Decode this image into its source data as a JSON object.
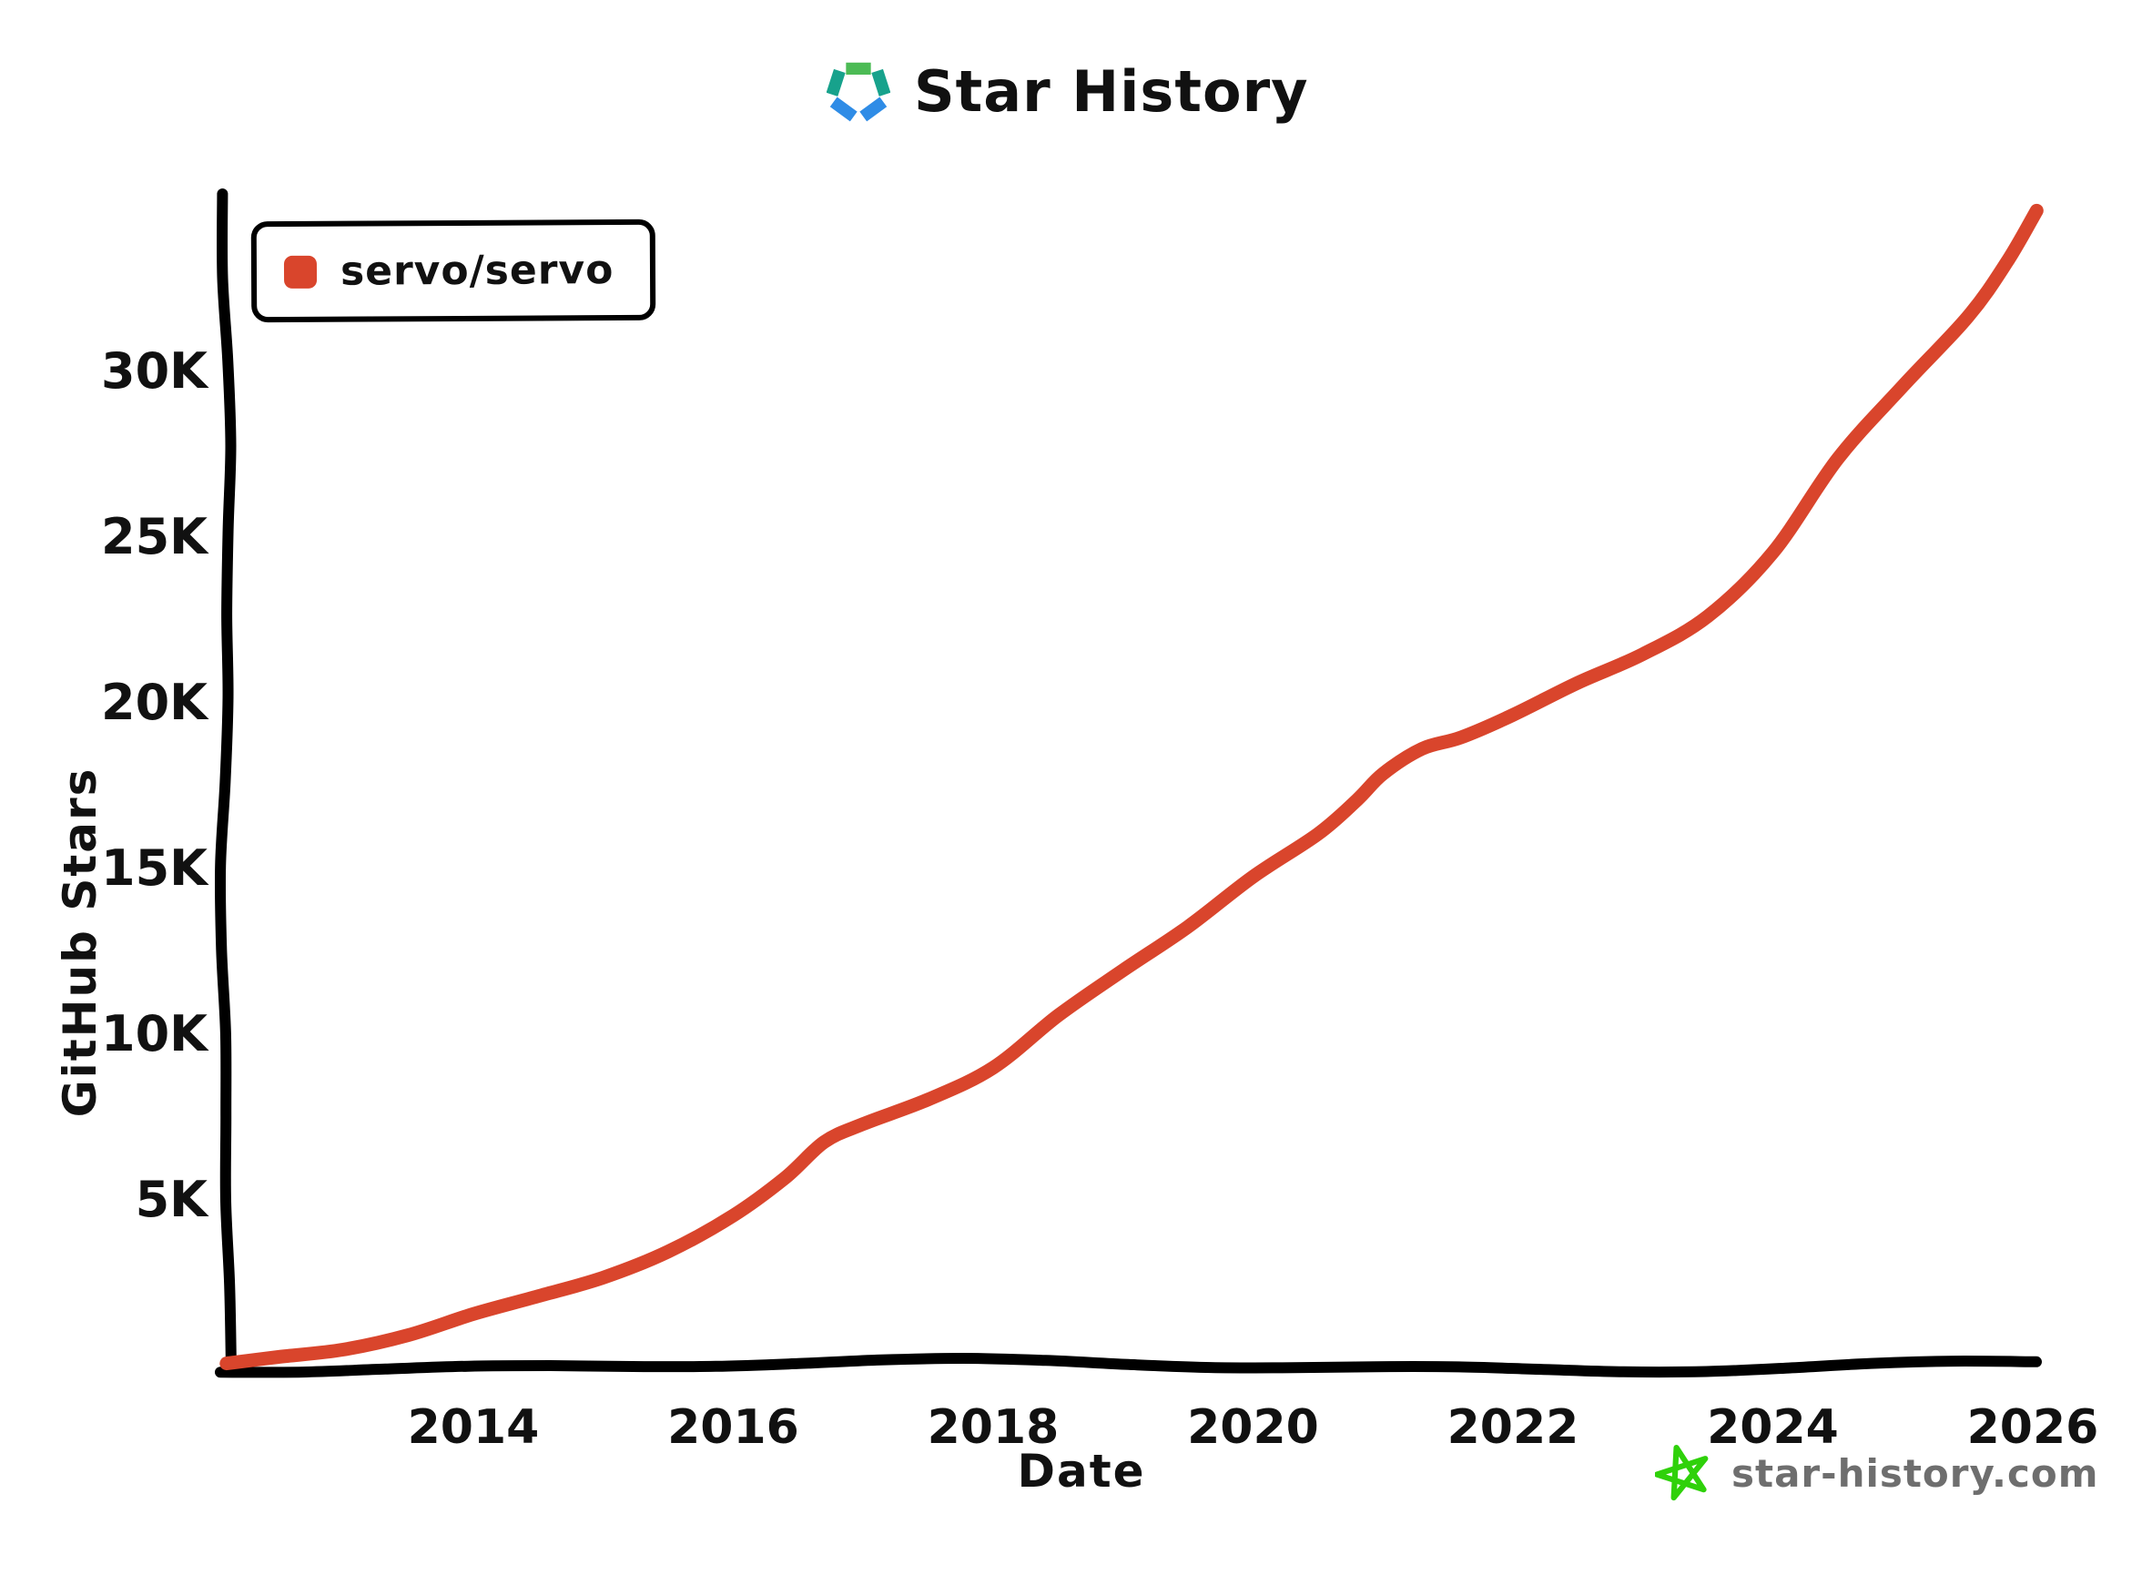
{
  "header": {
    "title": "Star History"
  },
  "legend": {
    "series_label": "servo/servo",
    "marker_color": "#d9452c"
  },
  "axes": {
    "y_label": "GitHub Stars",
    "x_label": "Date",
    "y_ticks": [
      {
        "label": "5K",
        "value": 5000
      },
      {
        "label": "10K",
        "value": 10000
      },
      {
        "label": "15K",
        "value": 15000
      },
      {
        "label": "20K",
        "value": 20000
      },
      {
        "label": "25K",
        "value": 25000
      },
      {
        "label": "30K",
        "value": 30000
      }
    ],
    "x_ticks": [
      {
        "label": "2014",
        "year": 2014
      },
      {
        "label": "2016",
        "year": 2016
      },
      {
        "label": "2018",
        "year": 2018
      },
      {
        "label": "2020",
        "year": 2020
      },
      {
        "label": "2022",
        "year": 2022
      },
      {
        "label": "2024",
        "year": 2024
      },
      {
        "label": "2026",
        "year": 2026
      }
    ]
  },
  "footer": {
    "site": "star-history.com",
    "star_color": "#2fd10a",
    "text_color": "#6e6e6e"
  },
  "colors": {
    "axis": "#000000",
    "series_red": "#d9452c",
    "logo_green": "#4cbb55",
    "logo_teal": "#17a28c",
    "logo_blue": "#2f8ce6"
  },
  "chart_data": {
    "type": "line",
    "title": "Star History",
    "xlabel": "Date",
    "ylabel": "GitHub Stars",
    "x_range": [
      2012.09,
      2026.03
    ],
    "y_range": [
      0,
      35400
    ],
    "grid": false,
    "legend_position": "top-left",
    "series": [
      {
        "name": "servo/servo",
        "color": "#d9452c",
        "x": [
          2012.1,
          2012.5,
          2013.0,
          2013.5,
          2014.0,
          2014.5,
          2015.0,
          2015.5,
          2016.0,
          2016.4,
          2016.7,
          2017.0,
          2017.5,
          2018.0,
          2018.5,
          2019.0,
          2019.5,
          2020.0,
          2020.5,
          2020.8,
          2021.0,
          2021.3,
          2021.6,
          2022.0,
          2022.5,
          2023.0,
          2023.5,
          2024.0,
          2024.5,
          2025.0,
          2025.5,
          2025.8,
          2026.03
        ],
        "y": [
          0,
          250,
          550,
          950,
          1500,
          2050,
          2700,
          3500,
          4500,
          5600,
          6700,
          7300,
          8100,
          9000,
          10500,
          11900,
          13300,
          14800,
          16000,
          17000,
          17800,
          18600,
          19000,
          19700,
          20600,
          21400,
          22600,
          24600,
          27400,
          29500,
          31600,
          33300,
          34900
        ]
      }
    ]
  }
}
